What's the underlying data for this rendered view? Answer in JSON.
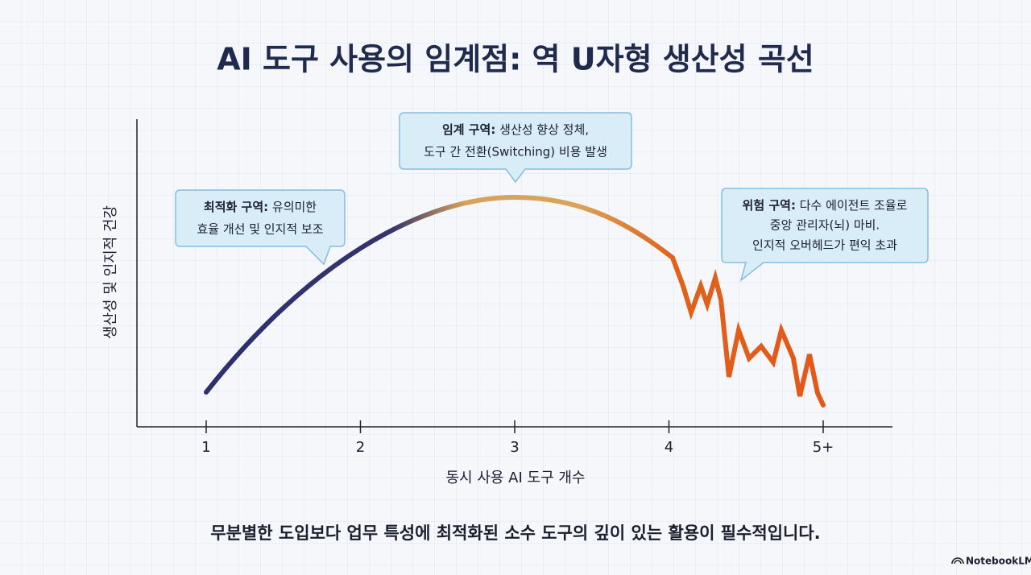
{
  "chart_data": {
    "type": "line",
    "title": "AI 도구 사용의 임계점: 역 U자형 생산성 곡선",
    "x_label": "동시 사용 AI 도구 개수",
    "y_label": "생산성 및 인지적 건강",
    "categories": [
      "1",
      "2",
      "3",
      "4",
      "5+"
    ],
    "annotations": [
      {
        "label": "최적화 구역:",
        "lines": [
          "유의미한",
          "효율 개선 및 인지적 보조"
        ]
      },
      {
        "label": "임계 구역:",
        "lines": [
          "생산성 향상 정체,",
          "도구 간 전환(Switching) 비용 발생"
        ]
      },
      {
        "label": "위험 구역:",
        "lines": [
          "다수 에이전트 조율로",
          "중앙 관리자(뇌) 마비.",
          "인지적 오버헤드가 편익 초과"
        ]
      }
    ],
    "footer": "무분별한 도입보다 업무 특성에 최적화된 소수 도구의 깊이 있는 활용이 필수적입니다.",
    "brand": "NotebookLM"
  }
}
